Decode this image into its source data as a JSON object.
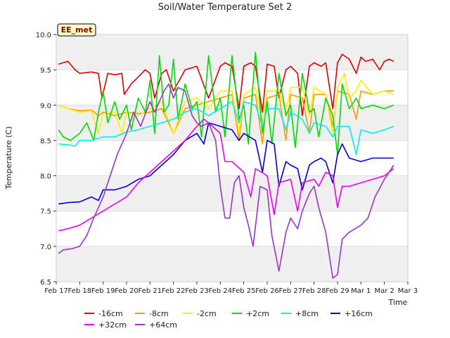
{
  "chart_data": {
    "type": "line",
    "title": "Soil/Water Temperature Set 2",
    "xlabel": "Time",
    "ylabel": "Temperature (C)",
    "site_label": "EE_met",
    "ylim": [
      6.5,
      10.0
    ],
    "yticks": [
      6.5,
      7.0,
      7.5,
      8.0,
      8.5,
      9.0,
      9.5,
      10.0
    ],
    "ytick_labels": [
      "6.5",
      "7.0",
      "7.5",
      "8.0",
      "8.5",
      "9.0",
      "9.5",
      "10.0"
    ],
    "xlim": [
      0,
      15
    ],
    "xticks": [
      0,
      1,
      2,
      3,
      4,
      5,
      6,
      7,
      8,
      9,
      10,
      11,
      12,
      13,
      14,
      15
    ],
    "xtick_labels": [
      "Feb 17",
      "Feb 18",
      "Feb 19",
      "Feb 20",
      "Feb 21",
      "Feb 22",
      "Feb 23",
      "Feb 24",
      "Feb 25",
      "Feb 26",
      "Feb 27",
      "Feb 28",
      "Feb 29",
      "Mar 1",
      "Mar 2",
      "Mar 3"
    ],
    "grid": true,
    "legend_position": "bottom",
    "series": [
      {
        "name": "-16cm",
        "color": "#dd0000",
        "x": [
          0.1,
          0.5,
          0.8,
          1.0,
          1.5,
          1.8,
          1.95,
          2.2,
          2.5,
          2.8,
          2.9,
          3.2,
          3.5,
          3.8,
          4.0,
          4.2,
          4.5,
          4.7,
          5.0,
          5.5,
          6.0,
          6.5,
          7.0,
          7.2,
          7.5,
          7.8,
          8.0,
          8.3,
          8.5,
          8.8,
          9.0,
          9.3,
          9.5,
          9.8,
          10.0,
          10.3,
          10.5,
          10.8,
          11.0,
          11.3,
          11.5,
          11.8,
          12.0,
          12.2,
          12.5,
          12.8,
          13.0,
          13.2,
          13.5,
          13.8,
          14.0,
          14.2,
          14.4
        ],
        "y": [
          9.58,
          9.62,
          9.5,
          9.45,
          9.47,
          9.45,
          9.1,
          9.45,
          9.43,
          9.45,
          9.15,
          9.3,
          9.4,
          9.5,
          9.45,
          9.1,
          9.45,
          9.5,
          9.2,
          9.5,
          9.55,
          9.1,
          9.55,
          9.6,
          9.55,
          8.95,
          9.55,
          9.6,
          9.55,
          8.9,
          9.58,
          9.55,
          9.1,
          9.5,
          9.55,
          9.45,
          8.85,
          9.55,
          9.6,
          9.55,
          9.6,
          8.95,
          9.6,
          9.72,
          9.65,
          9.45,
          9.68,
          9.62,
          9.65,
          9.5,
          9.62,
          9.65,
          9.62
        ]
      },
      {
        "name": "-8cm",
        "color": "#ff9900",
        "x": [
          0.1,
          0.5,
          1.0,
          1.5,
          1.8,
          2.0,
          2.5,
          3.0,
          3.5,
          4.0,
          4.5,
          5.0,
          5.5,
          6.0,
          6.5,
          7.0,
          7.5,
          7.8,
          8.0,
          8.5,
          8.8,
          9.0,
          9.5,
          9.8,
          10.0,
          10.5,
          10.8,
          11.0,
          11.5,
          11.8,
          12.0,
          12.5,
          12.8,
          13.0,
          13.5,
          14.0,
          14.4
        ],
        "y": [
          9.0,
          8.95,
          8.92,
          8.93,
          8.85,
          8.9,
          8.85,
          8.9,
          8.88,
          8.9,
          8.95,
          8.6,
          8.95,
          9.0,
          9.05,
          9.1,
          9.15,
          8.5,
          9.1,
          9.15,
          8.45,
          9.1,
          9.15,
          8.5,
          9.15,
          9.1,
          8.6,
          9.15,
          9.15,
          8.7,
          9.2,
          9.15,
          8.8,
          9.2,
          9.15,
          9.2,
          9.2
        ]
      },
      {
        "name": "-2cm",
        "color": "#ffee00",
        "x": [
          0.1,
          0.5,
          1.0,
          1.5,
          1.8,
          2.0,
          2.5,
          2.8,
          3.0,
          3.5,
          4.0,
          4.5,
          5.0,
          5.5,
          6.0,
          6.5,
          7.0,
          7.5,
          7.8,
          8.0,
          8.5,
          8.8,
          9.0,
          9.5,
          9.8,
          10.0,
          10.5,
          10.8,
          11.0,
          11.5,
          11.8,
          12.0,
          12.3,
          12.5,
          12.8,
          13.0,
          13.5,
          14.0,
          14.4
        ],
        "y": [
          9.0,
          8.95,
          8.9,
          8.92,
          8.6,
          8.88,
          8.9,
          8.6,
          8.9,
          8.85,
          8.95,
          9.05,
          8.6,
          9.05,
          9.1,
          8.95,
          9.2,
          9.2,
          8.6,
          9.15,
          9.25,
          8.75,
          9.2,
          9.2,
          8.9,
          9.25,
          9.25,
          8.85,
          9.25,
          9.15,
          8.6,
          9.25,
          9.45,
          9.1,
          9.2,
          9.35,
          9.15,
          9.2,
          9.15
        ]
      },
      {
        "name": "+2cm",
        "color": "#00dd00",
        "x": [
          0.1,
          0.3,
          0.6,
          1.0,
          1.3,
          1.6,
          1.8,
          2.0,
          2.2,
          2.5,
          2.7,
          3.0,
          3.2,
          3.5,
          3.8,
          4.0,
          4.2,
          4.4,
          4.6,
          4.8,
          5.0,
          5.2,
          5.5,
          5.8,
          6.0,
          6.2,
          6.5,
          6.8,
          7.0,
          7.2,
          7.5,
          7.8,
          8.0,
          8.2,
          8.5,
          8.8,
          9.0,
          9.2,
          9.5,
          9.8,
          10.0,
          10.2,
          10.5,
          10.8,
          11.0,
          11.2,
          11.5,
          11.8,
          12.0,
          12.2,
          12.5,
          12.8,
          13.0,
          13.5,
          14.0,
          14.4
        ],
        "y": [
          8.65,
          8.55,
          8.5,
          8.6,
          8.75,
          8.5,
          8.9,
          9.2,
          8.75,
          9.05,
          8.8,
          9.0,
          8.65,
          9.1,
          8.9,
          9.35,
          8.6,
          9.7,
          8.9,
          9.0,
          9.65,
          8.8,
          9.3,
          8.95,
          9.05,
          8.55,
          9.7,
          8.9,
          9.1,
          8.55,
          9.7,
          8.8,
          9.0,
          8.45,
          9.75,
          8.6,
          9.05,
          8.45,
          9.45,
          8.85,
          9.0,
          8.4,
          9.45,
          8.9,
          8.95,
          8.55,
          9.1,
          8.85,
          8.3,
          9.3,
          8.95,
          9.1,
          8.95,
          9.0,
          8.95,
          9.0
        ]
      },
      {
        "name": "+8cm",
        "color": "#00eeee",
        "x": [
          0.1,
          0.5,
          0.8,
          1.0,
          1.5,
          2.0,
          2.5,
          3.0,
          3.5,
          4.0,
          4.5,
          5.0,
          5.5,
          6.0,
          6.5,
          7.0,
          7.5,
          7.8,
          8.0,
          8.5,
          8.8,
          9.0,
          9.5,
          9.8,
          10.0,
          10.5,
          10.8,
          11.0,
          11.5,
          11.8,
          12.0,
          12.5,
          12.8,
          13.0,
          13.5,
          14.0,
          14.4
        ],
        "y": [
          8.45,
          8.44,
          8.42,
          8.5,
          8.5,
          8.55,
          8.55,
          8.62,
          8.65,
          8.7,
          8.75,
          8.8,
          8.9,
          8.95,
          8.85,
          8.95,
          9.05,
          8.75,
          9.05,
          9.0,
          8.7,
          8.95,
          8.95,
          8.65,
          8.9,
          8.8,
          8.6,
          8.75,
          8.7,
          8.55,
          8.7,
          8.7,
          8.3,
          8.65,
          8.6,
          8.65,
          8.7
        ]
      },
      {
        "name": "+16cm",
        "color": "#0000cc",
        "x": [
          0.1,
          0.5,
          1.0,
          1.5,
          1.8,
          2.0,
          2.5,
          3.0,
          3.5,
          4.0,
          4.5,
          5.0,
          5.5,
          6.0,
          6.3,
          6.5,
          7.0,
          7.5,
          7.8,
          8.0,
          8.5,
          8.8,
          9.0,
          9.3,
          9.5,
          9.8,
          10.0,
          10.3,
          10.5,
          10.8,
          11.0,
          11.3,
          11.5,
          11.8,
          12.0,
          12.2,
          12.5,
          13.0,
          13.5,
          14.0,
          14.4
        ],
        "y": [
          7.6,
          7.62,
          7.63,
          7.7,
          7.65,
          7.8,
          7.8,
          7.85,
          7.95,
          8.0,
          8.15,
          8.3,
          8.5,
          8.6,
          8.45,
          8.75,
          8.7,
          8.65,
          8.5,
          8.6,
          8.5,
          8.05,
          8.5,
          8.45,
          7.85,
          8.2,
          8.15,
          8.1,
          7.8,
          8.15,
          8.2,
          8.25,
          8.2,
          7.9,
          8.3,
          8.45,
          8.25,
          8.2,
          8.25,
          8.25,
          8.25
        ]
      },
      {
        "name": "+32cm",
        "color": "#ee00ee",
        "x": [
          0.1,
          0.5,
          1.0,
          1.5,
          2.0,
          2.5,
          3.0,
          3.5,
          4.0,
          4.5,
          5.0,
          5.5,
          6.0,
          6.3,
          6.5,
          7.0,
          7.2,
          7.5,
          8.0,
          8.3,
          8.5,
          9.0,
          9.3,
          9.5,
          10.0,
          10.3,
          10.5,
          11.0,
          11.2,
          11.5,
          11.8,
          12.0,
          12.2,
          12.5,
          13.0,
          13.5,
          14.0,
          14.4
        ],
        "y": [
          7.22,
          7.25,
          7.3,
          7.4,
          7.5,
          7.6,
          7.7,
          7.9,
          8.05,
          8.2,
          8.35,
          8.5,
          8.7,
          8.8,
          8.75,
          8.6,
          8.2,
          8.2,
          8.05,
          7.7,
          8.1,
          8.0,
          7.45,
          7.9,
          7.95,
          7.5,
          7.9,
          7.95,
          7.85,
          8.05,
          8.0,
          7.55,
          7.85,
          7.85,
          7.9,
          7.95,
          8.0,
          8.1
        ]
      },
      {
        "name": "+64cm",
        "color": "#9933cc",
        "x": [
          0.1,
          0.3,
          0.7,
          1.0,
          1.3,
          1.6,
          2.0,
          2.3,
          2.6,
          3.0,
          3.3,
          3.6,
          4.0,
          4.2,
          4.6,
          4.8,
          5.0,
          5.2,
          5.5,
          5.8,
          6.0,
          6.2,
          6.5,
          6.8,
          7.0,
          7.2,
          7.4,
          7.6,
          7.8,
          8.0,
          8.2,
          8.4,
          8.7,
          9.0,
          9.2,
          9.5,
          9.8,
          10.0,
          10.3,
          10.5,
          10.8,
          11.0,
          11.2,
          11.5,
          11.8,
          12.0,
          12.2,
          12.5,
          13.0,
          13.3,
          13.6,
          14.0,
          14.4
        ],
        "y": [
          6.9,
          6.95,
          6.97,
          7.0,
          7.15,
          7.4,
          7.7,
          8.0,
          8.3,
          8.6,
          8.9,
          8.7,
          9.05,
          8.9,
          9.2,
          9.3,
          9.1,
          9.25,
          9.2,
          8.85,
          8.75,
          8.7,
          8.75,
          8.5,
          7.85,
          7.4,
          7.4,
          7.9,
          8.0,
          7.55,
          7.3,
          7.0,
          7.85,
          7.8,
          7.15,
          6.65,
          7.2,
          7.4,
          7.25,
          7.5,
          7.75,
          7.85,
          7.55,
          7.2,
          6.55,
          6.6,
          7.1,
          7.2,
          7.3,
          7.4,
          7.7,
          7.95,
          8.15
        ]
      }
    ]
  }
}
